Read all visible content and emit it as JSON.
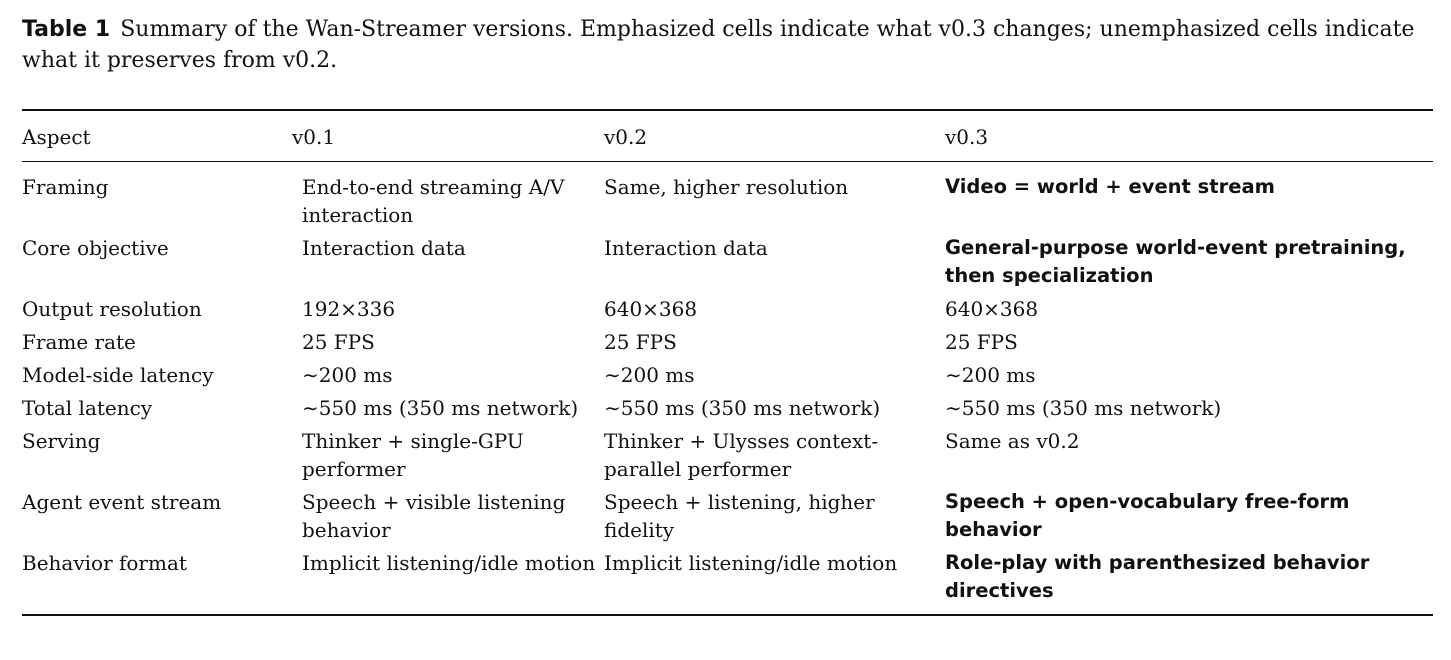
{
  "caption": {
    "label": "Table 1",
    "text": "Summary of the Wan-Streamer versions. Emphasized cells indicate what v0.3 changes; unemphasized cells indicate what it preserves from v0.2."
  },
  "table": {
    "headers": [
      "Aspect",
      "v0.1",
      "v0.2",
      "v0.3"
    ],
    "rows": [
      {
        "aspect": "Framing",
        "v01": "End-to-end streaming A/V interaction",
        "v02": "Same, higher resolution",
        "v03": "Video = world + event stream",
        "v03_emphasized": true
      },
      {
        "aspect": "Core objective",
        "v01": "Interaction data",
        "v02": "Interaction data",
        "v03": "General-purpose world-event pretraining, then specialization",
        "v03_emphasized": true
      },
      {
        "aspect": "Output resolution",
        "v01": "192×336",
        "v02": "640×368",
        "v03": "640×368",
        "v03_emphasized": false
      },
      {
        "aspect": "Frame rate",
        "v01": "25 FPS",
        "v02": "25 FPS",
        "v03": "25 FPS",
        "v03_emphasized": false
      },
      {
        "aspect": "Model-side latency",
        "v01": "∼200 ms",
        "v02": "∼200 ms",
        "v03": "∼200 ms",
        "v03_emphasized": false
      },
      {
        "aspect": "Total latency",
        "v01": "∼550 ms (350 ms network)",
        "v02": "∼550 ms (350 ms network)",
        "v03": "∼550 ms (350 ms network)",
        "v03_emphasized": false
      },
      {
        "aspect": "Serving",
        "v01": "Thinker + single-GPU performer",
        "v02": "Thinker + Ulysses context-parallel performer",
        "v03": "Same as v0.2",
        "v03_emphasized": false
      },
      {
        "aspect": "Agent event stream",
        "v01": "Speech + visible listening behavior",
        "v02": "Speech + listening, higher fidelity",
        "v03": "Speech + open-vocabulary free-form behavior",
        "v03_emphasized": true
      },
      {
        "aspect": "Behavior format",
        "v01": "Implicit listening/idle motion",
        "v02": "Implicit listening/idle motion",
        "v03": "Role-play with parenthesized behavior directives",
        "v03_emphasized": true
      }
    ]
  }
}
